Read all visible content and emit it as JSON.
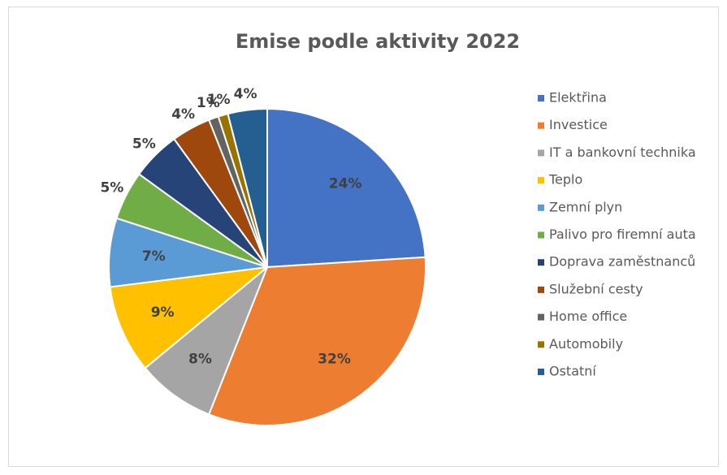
{
  "chart_data": {
    "type": "pie",
    "title": "Emise podle aktivity 2022",
    "categories": [
      "Elektřina",
      "Investice",
      "IT a bankovní technika",
      "Teplo",
      "Zemní plyn",
      "Palivo pro firemní auta",
      "Doprava zaměstnanců",
      "Služební cesty",
      "Home office",
      "Automobily",
      "Ostatní"
    ],
    "values": [
      24,
      32,
      8,
      9,
      7,
      5,
      5,
      4,
      1,
      1,
      4
    ],
    "value_labels": [
      "24%",
      "32%",
      "8%",
      "9%",
      "7%",
      "5%",
      "5%",
      "4%",
      "1%",
      "1%",
      "4%"
    ],
    "colors": [
      "#4472c4",
      "#ed7d31",
      "#a5a5a5",
      "#ffc000",
      "#5b9bd5",
      "#70ad47",
      "#264478",
      "#9e480e",
      "#636363",
      "#997300",
      "#255e91"
    ],
    "legend": "right"
  }
}
